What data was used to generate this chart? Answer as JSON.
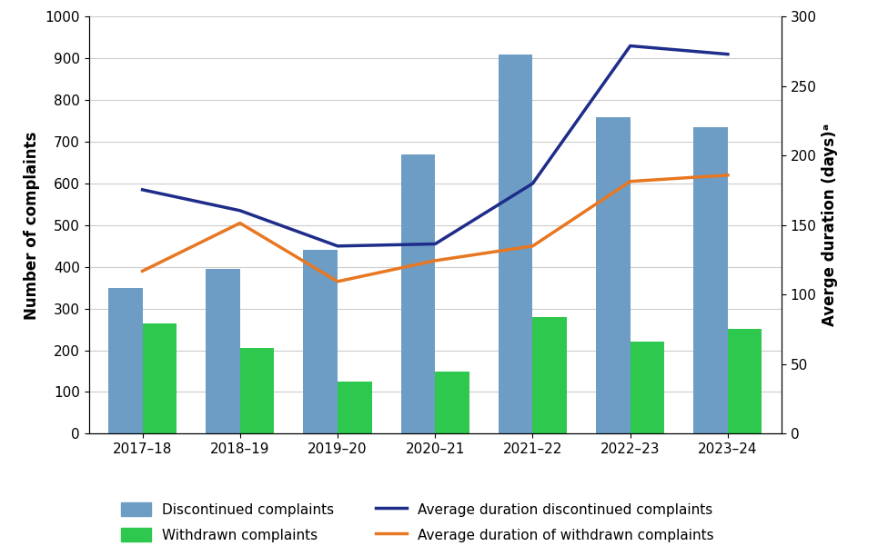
{
  "categories": [
    "2017–18",
    "2018–19",
    "2019–20",
    "2020–21",
    "2021–22",
    "2022–23",
    "2023–24"
  ],
  "discontinued": [
    350,
    395,
    440,
    670,
    910,
    760,
    735
  ],
  "withdrawn": [
    265,
    205,
    125,
    150,
    280,
    220,
    252
  ],
  "avg_discontinued_left": [
    585,
    535,
    450,
    455,
    600,
    930,
    910
  ],
  "avg_withdrawn_left": [
    390,
    505,
    365,
    415,
    450,
    605,
    620
  ],
  "bar_color_discontinued": "#6D9DC5",
  "bar_color_withdrawn": "#2DC84D",
  "line_color_discontinued": "#1F2D8A",
  "line_color_withdrawn": "#E87722",
  "ylabel_left": "Number of complaints",
  "ylabel_right": "Averge duration (days)ᵃ",
  "ylim_left": [
    0,
    1000
  ],
  "ylim_right": [
    0,
    300
  ],
  "yticks_left": [
    0,
    100,
    200,
    300,
    400,
    500,
    600,
    700,
    800,
    900,
    1000
  ],
  "yticks_right": [
    0,
    50,
    100,
    150,
    200,
    250,
    300
  ],
  "legend_labels": [
    "Discontinued complaints",
    "Withdrawn complaints",
    "Average duration discontinued complaints",
    "Average duration of withdrawn complaints"
  ],
  "bar_width": 0.35,
  "background_color": "#ffffff",
  "grid_color": "#cccccc"
}
